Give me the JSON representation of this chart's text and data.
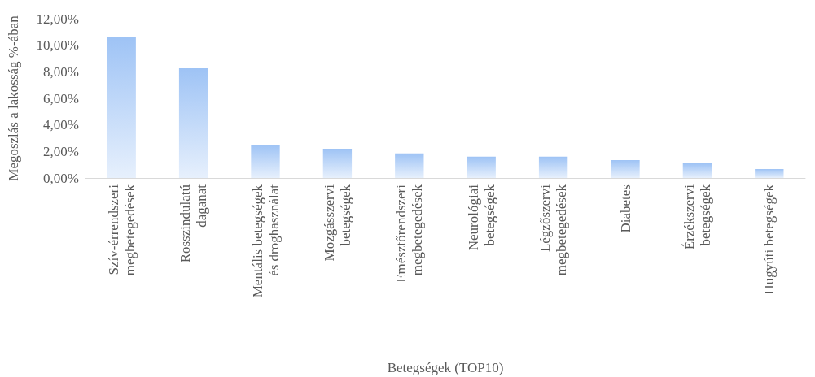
{
  "chart_data": {
    "type": "bar",
    "xlabel": "Betegségek (TOP10)",
    "ylabel": "Megoszlás a lakosság %-ában",
    "categories": [
      "Szív-érrendszeri\nmegbetegedések",
      "Rosszindulatú\ndaganat",
      "Mentális betegségek\nés droghasználat",
      "Mozgásszervi\nbetegségek",
      "Emésztőrendszeri\nmegbetegedések",
      "Neurológiai\nbetegségek",
      "Légzőszervi\nmegbetegedések",
      "Diabetes",
      "Érzékszervi\nbetegségek",
      "Hugyúti betegségek"
    ],
    "values": [
      10.65,
      8.27,
      2.5,
      2.2,
      1.85,
      1.6,
      1.6,
      1.35,
      1.1,
      0.67
    ],
    "color": "#9ec3f5",
    "ylim": [
      0,
      12
    ],
    "yticks": [
      {
        "value": 0,
        "label": "0,00%"
      },
      {
        "value": 2,
        "label": "2,00%"
      },
      {
        "value": 4,
        "label": "4,00%"
      },
      {
        "value": 6,
        "label": "6,00%"
      },
      {
        "value": 8,
        "label": "8,00%"
      },
      {
        "value": 10,
        "label": "10,00%"
      },
      {
        "value": 12,
        "label": "12,00%"
      }
    ],
    "grid": false
  }
}
